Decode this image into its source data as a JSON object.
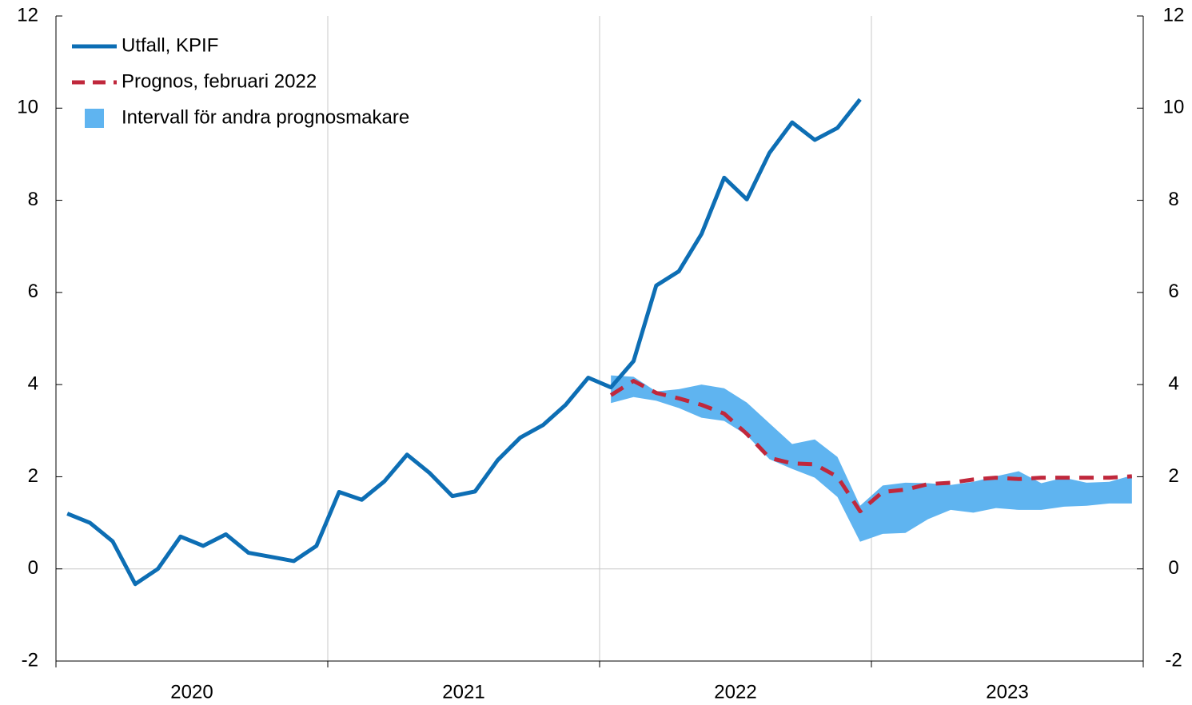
{
  "chart_data": {
    "type": "line",
    "years": [
      "2020",
      "2021",
      "2022",
      "2023"
    ],
    "ylim": [
      -2,
      12
    ],
    "yticks": [
      -2,
      0,
      2,
      4,
      6,
      8,
      10,
      12
    ],
    "y2lim": [
      -2,
      12
    ],
    "y2ticks": [
      -2,
      0,
      2,
      4,
      6,
      8,
      10,
      12
    ],
    "legend": "upper left",
    "series": [
      {
        "name": "Utfall, KPIF",
        "color": "#0d6eb4",
        "style": "solid",
        "values": [
          1.2,
          1.0,
          0.6,
          -0.33,
          0.0,
          0.7,
          0.5,
          0.75,
          0.35,
          0.26,
          0.17,
          0.5,
          1.67,
          1.5,
          1.9,
          2.48,
          2.08,
          1.58,
          1.68,
          2.36,
          2.85,
          3.12,
          3.56,
          4.15,
          3.94,
          4.51,
          6.15,
          6.46,
          7.27,
          8.49,
          8.02,
          9.03,
          9.69,
          9.31,
          9.57,
          10.19,
          null,
          null,
          null,
          null,
          null,
          null,
          null,
          null,
          null,
          null,
          null,
          null
        ]
      },
      {
        "name": "Prognos, februari 2022",
        "color": "#c0283c",
        "style": "dashed",
        "values": [
          null,
          null,
          null,
          null,
          null,
          null,
          null,
          null,
          null,
          null,
          null,
          null,
          null,
          null,
          null,
          null,
          null,
          null,
          null,
          null,
          null,
          null,
          null,
          null,
          3.77,
          4.08,
          3.82,
          3.7,
          3.56,
          3.37,
          2.93,
          2.41,
          2.29,
          2.27,
          2.0,
          1.25,
          1.67,
          1.72,
          1.84,
          1.87,
          1.94,
          1.98,
          1.95,
          1.98,
          1.98,
          1.98,
          1.98,
          2.01
        ]
      },
      {
        "name": "Intervall för andra prognosmakare",
        "color": "#5fb4f0",
        "style": "band",
        "upper": [
          null,
          null,
          null,
          null,
          null,
          null,
          null,
          null,
          null,
          null,
          null,
          null,
          null,
          null,
          null,
          null,
          null,
          null,
          null,
          null,
          null,
          null,
          null,
          null,
          4.2,
          4.17,
          3.85,
          3.9,
          4.0,
          3.92,
          3.61,
          3.16,
          2.71,
          2.81,
          2.43,
          1.37,
          1.81,
          1.87,
          1.86,
          1.82,
          1.89,
          2.01,
          2.12,
          1.86,
          1.98,
          1.87,
          1.89,
          2.03
        ],
        "lower": [
          null,
          null,
          null,
          null,
          null,
          null,
          null,
          null,
          null,
          null,
          null,
          null,
          null,
          null,
          null,
          null,
          null,
          null,
          null,
          null,
          null,
          null,
          null,
          null,
          3.6,
          3.73,
          3.65,
          3.49,
          3.28,
          3.21,
          2.9,
          2.38,
          2.17,
          1.98,
          1.56,
          0.59,
          0.76,
          0.78,
          1.08,
          1.28,
          1.22,
          1.32,
          1.28,
          1.28,
          1.35,
          1.37,
          1.42,
          1.42
        ]
      }
    ]
  }
}
